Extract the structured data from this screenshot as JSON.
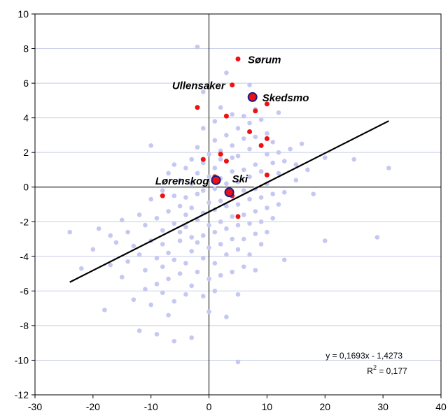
{
  "chart_data": {
    "type": "scatter",
    "xlim": [
      -30,
      40
    ],
    "ylim": [
      -12,
      10
    ],
    "x_ticks": [
      "-30",
      "-20",
      "-10",
      "0",
      "10",
      "20",
      "30",
      "40"
    ],
    "y_ticks": [
      "-12",
      "-10",
      "-8",
      "-6",
      "-4",
      "-2",
      "0",
      "2",
      "4",
      "6",
      "8",
      "10"
    ],
    "grid": "horizontal",
    "colors": {
      "background_points": "#c5c8f0",
      "highlight_points": "#ee1111",
      "labeled_point_stroke": "#1c1c8a",
      "trendline": "#000000",
      "grid": "#c8cde8"
    },
    "series": [
      {
        "role": "background",
        "points": [
          [
            -24,
            -2.6
          ],
          [
            -22,
            -4.7
          ],
          [
            -20,
            -3.6
          ],
          [
            -19,
            -2.4
          ],
          [
            -18,
            -7.1
          ],
          [
            -17,
            -4.5
          ],
          [
            -17,
            -2.8
          ],
          [
            -16,
            -3.2
          ],
          [
            -15,
            -5.2
          ],
          [
            -15,
            -1.9
          ],
          [
            -14,
            -4.3
          ],
          [
            -14,
            -2.6
          ],
          [
            -13,
            -3.4
          ],
          [
            -13,
            -6.5
          ],
          [
            -12,
            -8.3
          ],
          [
            -12,
            -3.9
          ],
          [
            -12,
            -1.6
          ],
          [
            -11,
            -4.8
          ],
          [
            -11,
            -2.2
          ],
          [
            -11,
            -5.9
          ],
          [
            -10,
            -0.7
          ],
          [
            -10,
            -3.1
          ],
          [
            -10,
            2.4
          ],
          [
            -10,
            -6.8
          ],
          [
            -9,
            -4.1
          ],
          [
            -9,
            -1.8
          ],
          [
            -9,
            -5.6
          ],
          [
            -9,
            -8.5
          ],
          [
            -8,
            -3.3
          ],
          [
            -8,
            -2.5
          ],
          [
            -8,
            -0.2
          ],
          [
            -8,
            -4.6
          ],
          [
            -8,
            -6.1
          ],
          [
            -7,
            0.8
          ],
          [
            -7,
            -1.4
          ],
          [
            -7,
            -3.8
          ],
          [
            -7,
            -5.3
          ],
          [
            -7,
            -7.4
          ],
          [
            -6,
            -0.5
          ],
          [
            -6,
            -2.1
          ],
          [
            -6,
            -4.2
          ],
          [
            -6,
            1.3
          ],
          [
            -6,
            -6.6
          ],
          [
            -6,
            -8.9
          ],
          [
            -5,
            -1.1
          ],
          [
            -5,
            -3.1
          ],
          [
            -5,
            0.4
          ],
          [
            -5,
            -5.0
          ],
          [
            -5,
            -2.6
          ],
          [
            -4,
            1.1
          ],
          [
            -4,
            -0.6
          ],
          [
            -4,
            -2.3
          ],
          [
            -4,
            -4.4
          ],
          [
            -4,
            -6.2
          ],
          [
            -4,
            -1.6
          ],
          [
            -3,
            0.2
          ],
          [
            -3,
            -1.2
          ],
          [
            -3,
            -2.9
          ],
          [
            -3,
            -3.7
          ],
          [
            -3,
            -5.7
          ],
          [
            -3,
            1.6
          ],
          [
            -3,
            -8.7
          ],
          [
            -2,
            0.8
          ],
          [
            -2,
            -0.4
          ],
          [
            -2,
            -1.9
          ],
          [
            -2,
            -3.2
          ],
          [
            -2,
            -4.9
          ],
          [
            -2,
            2.3
          ],
          [
            -2,
            8.1
          ],
          [
            -1,
            1.4
          ],
          [
            -1,
            -0.2
          ],
          [
            -1,
            -1.5
          ],
          [
            -1,
            -2.8
          ],
          [
            -1,
            -4.1
          ],
          [
            -1,
            3.4
          ],
          [
            -1,
            5.5
          ],
          [
            -1,
            -6.3
          ],
          [
            0,
            0.6
          ],
          [
            0,
            -0.9
          ],
          [
            0,
            -2.2
          ],
          [
            0,
            -3.5
          ],
          [
            0,
            -5.3
          ],
          [
            0,
            1.9
          ],
          [
            0,
            -7.2
          ],
          [
            1,
            2.7
          ],
          [
            1,
            1.1
          ],
          [
            1,
            -0.1
          ],
          [
            1,
            -1.3
          ],
          [
            1,
            -2.6
          ],
          [
            1,
            -4.4
          ],
          [
            1,
            3.8
          ],
          [
            1,
            -6.0
          ],
          [
            2,
            2.1
          ],
          [
            2,
            0.5
          ],
          [
            2,
            -0.8
          ],
          [
            2,
            -2.0
          ],
          [
            2,
            -3.3
          ],
          [
            2,
            4.6
          ],
          [
            2,
            -5.1
          ],
          [
            2,
            1.6
          ],
          [
            3,
            1.5
          ],
          [
            3,
            0.2
          ],
          [
            3,
            -1.1
          ],
          [
            3,
            -2.4
          ],
          [
            3,
            3.0
          ],
          [
            3,
            -3.9
          ],
          [
            3,
            6.6
          ],
          [
            3,
            -7.5
          ],
          [
            4,
            0.9
          ],
          [
            4,
            -0.5
          ],
          [
            4,
            -1.7
          ],
          [
            4,
            2.4
          ],
          [
            4,
            -3.0
          ],
          [
            4,
            4.2
          ],
          [
            4,
            -4.9
          ],
          [
            4,
            1.7
          ],
          [
            5,
            0.3
          ],
          [
            5,
            -1.0
          ],
          [
            5,
            1.8
          ],
          [
            5,
            -2.2
          ],
          [
            5,
            3.4
          ],
          [
            5,
            -3.6
          ],
          [
            5,
            -6.2
          ],
          [
            5,
            -10.1
          ],
          [
            6,
            2.8
          ],
          [
            6,
            1.0
          ],
          [
            6,
            -0.2
          ],
          [
            6,
            -1.6
          ],
          [
            6,
            -3.0
          ],
          [
            6,
            4.1
          ],
          [
            6,
            -4.6
          ],
          [
            7,
            2.2
          ],
          [
            7,
            0.6
          ],
          [
            7,
            -0.7
          ],
          [
            7,
            -2.1
          ],
          [
            7,
            3.7
          ],
          [
            7,
            -3.9
          ],
          [
            7,
            5.9
          ],
          [
            8,
            1.3
          ],
          [
            8,
            -0.1
          ],
          [
            8,
            -1.4
          ],
          [
            8,
            2.9
          ],
          [
            8,
            -2.7
          ],
          [
            8,
            4.5
          ],
          [
            8,
            -4.8
          ],
          [
            9,
            0.9
          ],
          [
            9,
            -0.6
          ],
          [
            9,
            2.4
          ],
          [
            9,
            -2.0
          ],
          [
            9,
            3.9
          ],
          [
            9,
            -3.3
          ],
          [
            10,
            1.9
          ],
          [
            10,
            0.2
          ],
          [
            10,
            -1.2
          ],
          [
            10,
            3.1
          ],
          [
            10,
            -2.6
          ],
          [
            11,
            1.4
          ],
          [
            11,
            -0.4
          ],
          [
            11,
            2.6
          ],
          [
            11,
            -1.8
          ],
          [
            12,
            0.8
          ],
          [
            12,
            2.0
          ],
          [
            12,
            -1.0
          ],
          [
            12,
            4.3
          ],
          [
            13,
            1.5
          ],
          [
            13,
            -0.3
          ],
          [
            13,
            -4.2
          ],
          [
            14,
            2.2
          ],
          [
            15,
            1.3
          ],
          [
            15,
            0.4
          ],
          [
            16,
            2.5
          ],
          [
            17,
            1.0
          ],
          [
            18,
            -0.4
          ],
          [
            20,
            -3.1
          ],
          [
            20,
            1.7
          ],
          [
            25,
            1.6
          ],
          [
            29,
            -2.9
          ],
          [
            31,
            1.1
          ]
        ]
      },
      {
        "role": "highlight",
        "points": [
          [
            -8,
            -0.5
          ],
          [
            -2,
            4.6
          ],
          [
            -1,
            1.6
          ],
          [
            1,
            0.6
          ],
          [
            2,
            1.9
          ],
          [
            3,
            4.1
          ],
          [
            3,
            1.5
          ],
          [
            4,
            -0.5
          ],
          [
            4,
            5.9
          ],
          [
            5,
            7.4
          ],
          [
            5,
            -1.7
          ],
          [
            7,
            3.2
          ],
          [
            8,
            4.4
          ],
          [
            9,
            2.4
          ],
          [
            10,
            4.8
          ],
          [
            10,
            2.8
          ],
          [
            10,
            0.7
          ]
        ]
      }
    ],
    "labeled_points": [
      {
        "label": "Sørum",
        "x": 5,
        "y": 7.4,
        "marker": "highlight"
      },
      {
        "label": "Ullensaker",
        "x": 4,
        "y": 5.9,
        "marker": "highlight"
      },
      {
        "label": "Skedsmo",
        "x": 7.5,
        "y": 5.2,
        "marker": "outlined"
      },
      {
        "label": "Lørenskog",
        "x": 1.2,
        "y": 0.4,
        "marker": "outlined"
      },
      {
        "label": "Ski",
        "x": 3.5,
        "y": -0.3,
        "marker": "outlined"
      }
    ],
    "trendline": {
      "slope": 0.1693,
      "intercept": -1.4273,
      "x_range": [
        -24,
        31
      ],
      "equation": "y = 0,1693x - 1,4273",
      "r2_prefix": "R",
      "r2_exponent": "2",
      "r2_value": " = 0,177"
    }
  }
}
